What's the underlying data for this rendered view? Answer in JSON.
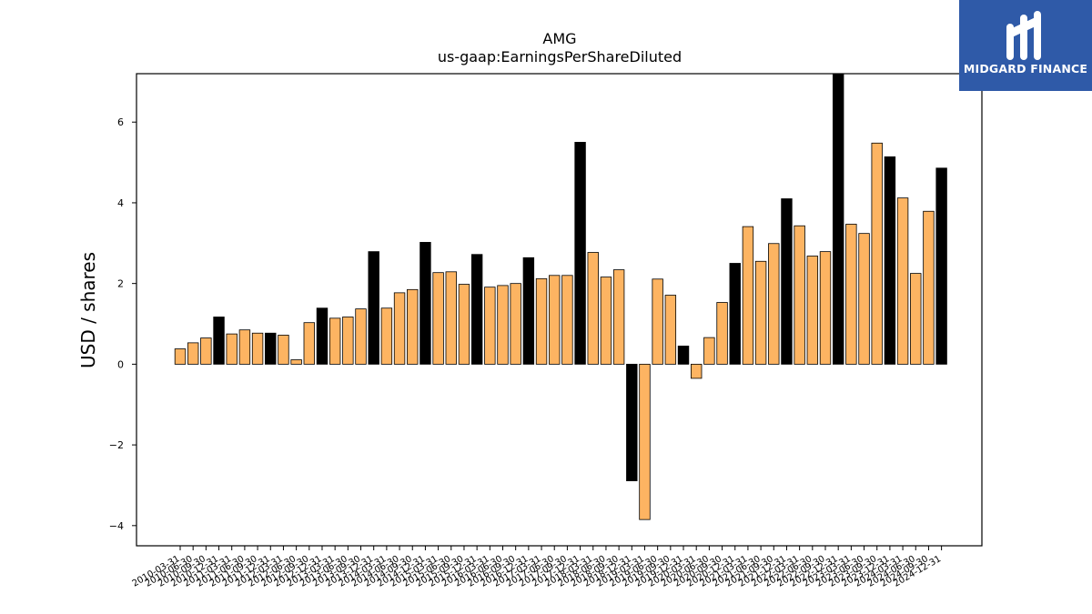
{
  "brand": {
    "name": "MIDGARD FINANCE",
    "bg": "#2f5aa8"
  },
  "chart_data": {
    "type": "bar",
    "title": "AMG",
    "subtitle": "us-gaap:EarningsPerShareDiluted",
    "xlabel": "",
    "ylabel": "USD / shares",
    "ylim": [
      -4.5,
      7.2
    ],
    "yticks": [
      -4,
      -2,
      0,
      2,
      4,
      6
    ],
    "colors": {
      "quarter": "#fdb462",
      "annual": "#000000"
    },
    "categories": [
      "2010-03-31",
      "2010-06-30",
      "2010-09-30",
      "2010-12-31",
      "2011-03-31",
      "2011-06-30",
      "2011-09-30",
      "2011-12-31",
      "2012-03-31",
      "2012-06-30",
      "2012-09-30",
      "2012-12-31",
      "2013-03-31",
      "2013-06-30",
      "2013-09-30",
      "2013-12-31",
      "2014-03-31",
      "2014-06-30",
      "2014-09-30",
      "2014-12-31",
      "2015-03-31",
      "2015-06-30",
      "2015-09-30",
      "2015-12-31",
      "2016-03-31",
      "2016-06-30",
      "2016-09-30",
      "2016-12-31",
      "2017-03-31",
      "2017-06-30",
      "2017-09-30",
      "2017-12-31",
      "2018-03-31",
      "2018-06-30",
      "2018-09-30",
      "2018-12-31",
      "2019-03-31",
      "2019-06-30",
      "2019-09-30",
      "2019-12-31",
      "2020-03-31",
      "2020-06-30",
      "2020-09-30",
      "2020-12-31",
      "2021-03-31",
      "2021-06-30",
      "2021-09-30",
      "2021-12-31",
      "2022-03-31",
      "2022-06-30",
      "2022-09-30",
      "2022-12-31",
      "2023-03-31",
      "2023-06-30",
      "2023-09-30",
      "2023-12-31",
      "2024-03-31",
      "2024-06-30",
      "2024-09-30",
      "2024-12-31"
    ],
    "values": [
      0.38,
      0.53,
      0.65,
      1.17,
      0.75,
      0.85,
      0.77,
      0.77,
      0.72,
      0.11,
      1.03,
      1.39,
      1.14,
      1.17,
      1.37,
      2.79,
      1.39,
      1.77,
      1.85,
      3.02,
      2.27,
      2.29,
      1.98,
      2.72,
      1.91,
      1.95,
      2.0,
      2.64,
      2.12,
      2.2,
      2.2,
      5.5,
      2.77,
      2.16,
      2.34,
      -2.89,
      -3.85,
      2.11,
      1.71,
      0.45,
      -0.35,
      0.66,
      1.53,
      2.5,
      3.41,
      2.55,
      2.99,
      4.1,
      3.43,
      2.68,
      2.79,
      7.2,
      3.47,
      3.24,
      5.48,
      5.14,
      4.12,
      2.25,
      3.79,
      4.86
    ],
    "annual_flags": [
      0,
      0,
      0,
      1,
      0,
      0,
      0,
      1,
      0,
      0,
      0,
      1,
      0,
      0,
      0,
      1,
      0,
      0,
      0,
      1,
      0,
      0,
      0,
      1,
      0,
      0,
      0,
      1,
      0,
      0,
      0,
      1,
      0,
      0,
      0,
      1,
      0,
      0,
      0,
      1,
      0,
      0,
      0,
      1,
      0,
      0,
      0,
      1,
      0,
      0,
      0,
      1,
      0,
      0,
      0,
      1,
      0,
      0,
      0,
      1
    ]
  }
}
